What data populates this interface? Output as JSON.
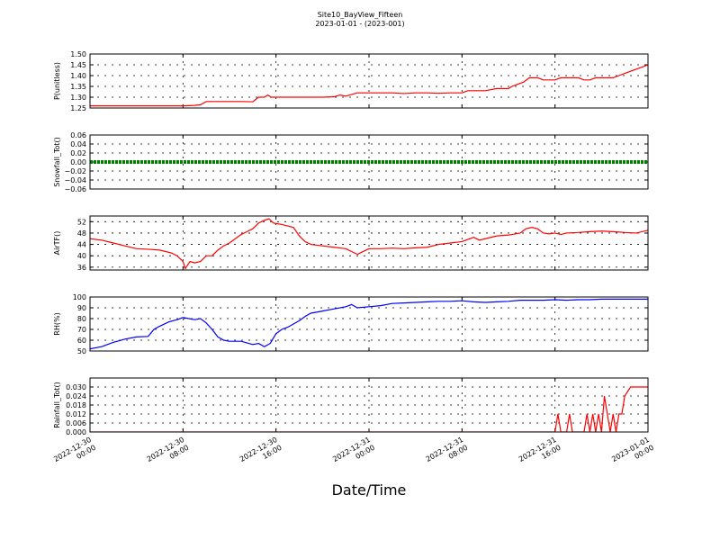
{
  "figure": {
    "title": "Site10_BayView_Fifteen",
    "subtitle": "2023-01-01 - (2023-001)",
    "xlabel": "Date/Time"
  },
  "chart_data": {
    "type": "line",
    "x_ticks": [
      {
        "l1": "2022-12-30",
        "l2": "00:00",
        "h": 0
      },
      {
        "l1": "2022-12-30",
        "l2": "08:00",
        "h": 8
      },
      {
        "l1": "2022-12-30",
        "l2": "16:00",
        "h": 16
      },
      {
        "l1": "2022-12-31",
        "l2": "00:00",
        "h": 24
      },
      {
        "l1": "2022-12-31",
        "l2": "08:00",
        "h": 32
      },
      {
        "l1": "2022-12-31",
        "l2": "16:00",
        "h": 40
      },
      {
        "l1": "2023-01-01",
        "l2": "00:00",
        "h": 48
      }
    ],
    "xlim_hours": [
      0,
      48
    ],
    "grid": true,
    "panels": [
      {
        "ylabel": "P(unitless)",
        "color": "#ff0000",
        "ylim": [
          1.25,
          1.5
        ],
        "yticks": [
          1.25,
          1.3,
          1.35,
          1.4,
          1.45,
          1.5
        ],
        "yticklabels": [
          "1.25",
          "1.30",
          "1.35",
          "1.40",
          "1.45",
          "1.50"
        ],
        "points": [
          [
            0,
            1.26
          ],
          [
            1.5,
            1.26
          ],
          [
            3,
            1.26
          ],
          [
            4.5,
            1.26
          ],
          [
            5,
            1.26
          ],
          [
            6,
            1.26
          ],
          [
            7,
            1.26
          ],
          [
            8,
            1.26
          ],
          [
            9,
            1.262
          ],
          [
            9.5,
            1.265
          ],
          [
            10,
            1.28
          ],
          [
            11,
            1.28
          ],
          [
            12,
            1.28
          ],
          [
            13,
            1.28
          ],
          [
            14,
            1.279
          ],
          [
            14.5,
            1.3
          ],
          [
            15,
            1.3
          ],
          [
            15.3,
            1.31
          ],
          [
            15.6,
            1.3
          ],
          [
            16,
            1.3
          ],
          [
            17,
            1.3
          ],
          [
            18,
            1.3
          ],
          [
            19,
            1.3
          ],
          [
            20,
            1.3
          ],
          [
            21,
            1.302
          ],
          [
            21.5,
            1.31
          ],
          [
            22,
            1.305
          ],
          [
            23,
            1.32
          ],
          [
            24,
            1.32
          ],
          [
            25,
            1.32
          ],
          [
            26,
            1.32
          ],
          [
            27,
            1.317
          ],
          [
            28,
            1.32
          ],
          [
            29,
            1.32
          ],
          [
            30,
            1.318
          ],
          [
            31,
            1.32
          ],
          [
            32,
            1.32
          ],
          [
            32.5,
            1.33
          ],
          [
            33,
            1.33
          ],
          [
            34,
            1.33
          ],
          [
            35,
            1.34
          ],
          [
            36,
            1.34
          ],
          [
            36.3,
            1.35
          ],
          [
            36.8,
            1.36
          ],
          [
            37.3,
            1.37
          ],
          [
            37.8,
            1.39
          ],
          [
            38.5,
            1.39
          ],
          [
            39,
            1.38
          ],
          [
            40,
            1.38
          ],
          [
            40.5,
            1.39
          ],
          [
            41,
            1.39
          ],
          [
            42,
            1.39
          ],
          [
            42.5,
            1.38
          ],
          [
            43,
            1.38
          ],
          [
            43.5,
            1.39
          ],
          [
            44,
            1.39
          ],
          [
            45,
            1.39
          ],
          [
            45.5,
            1.4
          ],
          [
            46,
            1.41
          ],
          [
            46.5,
            1.42
          ],
          [
            47,
            1.43
          ],
          [
            47.5,
            1.44
          ],
          [
            48,
            1.45
          ]
        ]
      },
      {
        "ylabel": "Snowfall_Tot()",
        "color": "#008000",
        "ylim": [
          -0.06,
          0.06
        ],
        "yticks": [
          -0.06,
          -0.04,
          -0.02,
          0.0,
          0.02,
          0.04,
          0.06
        ],
        "yticklabels": [
          "−0.06",
          "−0.04",
          "−0.02",
          "0.00",
          "0.02",
          "0.04",
          "0.06"
        ],
        "points": [
          [
            0,
            0
          ],
          [
            48,
            0
          ]
        ]
      },
      {
        "ylabel": "AirTF()",
        "color": "#ff0000",
        "ylim": [
          35,
          54
        ],
        "yticks": [
          36,
          40,
          44,
          48,
          52
        ],
        "yticklabels": [
          "36",
          "40",
          "44",
          "48",
          "52"
        ],
        "points": [
          [
            0,
            46
          ],
          [
            1,
            45.5
          ],
          [
            2,
            44.5
          ],
          [
            3,
            43.5
          ],
          [
            4,
            42.5
          ],
          [
            5,
            42.3
          ],
          [
            6,
            42
          ],
          [
            7,
            41
          ],
          [
            7.5,
            40
          ],
          [
            8,
            38
          ],
          [
            8.2,
            35.5
          ],
          [
            8.6,
            38
          ],
          [
            9,
            37.5
          ],
          [
            9.5,
            38
          ],
          [
            10,
            40
          ],
          [
            10.5,
            40
          ],
          [
            11,
            42
          ],
          [
            11.5,
            43.5
          ],
          [
            12,
            44.5
          ],
          [
            12.5,
            46
          ],
          [
            13,
            47.5
          ],
          [
            13.5,
            48.5
          ],
          [
            14,
            49.5
          ],
          [
            14.5,
            51.5
          ],
          [
            15,
            52.5
          ],
          [
            15.4,
            53
          ],
          [
            15.8,
            51.5
          ],
          [
            16.5,
            51
          ],
          [
            17,
            50.5
          ],
          [
            17.5,
            50
          ],
          [
            18,
            47
          ],
          [
            18.5,
            45
          ],
          [
            19,
            44
          ],
          [
            20,
            43.5
          ],
          [
            21,
            43
          ],
          [
            22,
            42.5
          ],
          [
            23,
            40.5
          ],
          [
            23.5,
            41.5
          ],
          [
            24,
            42.5
          ],
          [
            25,
            42.5
          ],
          [
            26,
            42.7
          ],
          [
            27,
            42.5
          ],
          [
            28,
            42.8
          ],
          [
            29,
            43
          ],
          [
            30,
            44
          ],
          [
            31,
            44.5
          ],
          [
            32,
            45
          ],
          [
            33,
            46.5
          ],
          [
            33.5,
            45.5
          ],
          [
            34,
            46
          ],
          [
            35,
            47
          ],
          [
            36,
            47.3
          ],
          [
            37,
            48
          ],
          [
            37.5,
            49.5
          ],
          [
            38,
            50
          ],
          [
            38.5,
            49.5
          ],
          [
            39,
            48
          ],
          [
            39.5,
            47.7
          ],
          [
            40,
            48
          ],
          [
            40.5,
            47.5
          ],
          [
            41,
            48
          ],
          [
            42,
            48.2
          ],
          [
            43,
            48.5
          ],
          [
            44,
            48.7
          ],
          [
            45,
            48.5
          ],
          [
            46,
            48.2
          ],
          [
            47,
            48
          ],
          [
            48,
            49
          ]
        ]
      },
      {
        "ylabel": "RH(%)",
        "color": "#0000ff",
        "ylim": [
          50,
          100
        ],
        "yticks": [
          50,
          60,
          70,
          80,
          90,
          100
        ],
        "yticklabels": [
          "50",
          "60",
          "70",
          "80",
          "90",
          "100"
        ],
        "points": [
          [
            0,
            52
          ],
          [
            1,
            54
          ],
          [
            2,
            58
          ],
          [
            3,
            61
          ],
          [
            4,
            63
          ],
          [
            5,
            63.5
          ],
          [
            5.5,
            70
          ],
          [
            6,
            73
          ],
          [
            6.8,
            77
          ],
          [
            7.5,
            79
          ],
          [
            8,
            81
          ],
          [
            8.5,
            80
          ],
          [
            9,
            79
          ],
          [
            9.5,
            80
          ],
          [
            10,
            76
          ],
          [
            10.5,
            70
          ],
          [
            11,
            63
          ],
          [
            11.5,
            60
          ],
          [
            12,
            59
          ],
          [
            13,
            59
          ],
          [
            14,
            56
          ],
          [
            14.5,
            57
          ],
          [
            15,
            54
          ],
          [
            15.5,
            57
          ],
          [
            16,
            66
          ],
          [
            16.5,
            70
          ],
          [
            17,
            72
          ],
          [
            18,
            78
          ],
          [
            18.5,
            82
          ],
          [
            19,
            85
          ],
          [
            20,
            87
          ],
          [
            21,
            89
          ],
          [
            22,
            91
          ],
          [
            22.5,
            93
          ],
          [
            23,
            90
          ],
          [
            24,
            91
          ],
          [
            25,
            92
          ],
          [
            26,
            94
          ],
          [
            27,
            94.5
          ],
          [
            28,
            95
          ],
          [
            29,
            95.5
          ],
          [
            30,
            96
          ],
          [
            31,
            96
          ],
          [
            32,
            96.5
          ],
          [
            33,
            95.5
          ],
          [
            34,
            95
          ],
          [
            35,
            95.5
          ],
          [
            36,
            96
          ],
          [
            37,
            97
          ],
          [
            38,
            97
          ],
          [
            39,
            97
          ],
          [
            40,
            97.5
          ],
          [
            41,
            97
          ],
          [
            42,
            97.5
          ],
          [
            43,
            97.5
          ],
          [
            44,
            98
          ],
          [
            45,
            98
          ],
          [
            46,
            98
          ],
          [
            47,
            98
          ],
          [
            48,
            98
          ]
        ]
      },
      {
        "ylabel": "Rainfall_Tot()",
        "color": "#ff0000",
        "ylim": [
          0,
          0.036
        ],
        "yticks": [
          0.0,
          0.006,
          0.012,
          0.018,
          0.024,
          0.03
        ],
        "yticklabels": [
          "0.000",
          "0.006",
          "0.012",
          "0.018",
          "0.024",
          "0.030"
        ],
        "points": [
          [
            0,
            0
          ],
          [
            40,
            0
          ],
          [
            40.25,
            0.012
          ],
          [
            40.5,
            0
          ],
          [
            41,
            0
          ],
          [
            41.25,
            0.012
          ],
          [
            41.5,
            0
          ],
          [
            42.5,
            0
          ],
          [
            42.75,
            0.012
          ],
          [
            43,
            0
          ],
          [
            43.25,
            0.012
          ],
          [
            43.5,
            0
          ],
          [
            43.75,
            0.012
          ],
          [
            44,
            0
          ],
          [
            44.25,
            0.024
          ],
          [
            44.5,
            0.012
          ],
          [
            44.75,
            0
          ],
          [
            45,
            0.012
          ],
          [
            45.25,
            0
          ],
          [
            45.5,
            0.012
          ],
          [
            45.75,
            0.012
          ],
          [
            46,
            0.024
          ],
          [
            46.5,
            0.03
          ],
          [
            47,
            0.03
          ],
          [
            48,
            0.03
          ]
        ]
      }
    ]
  }
}
